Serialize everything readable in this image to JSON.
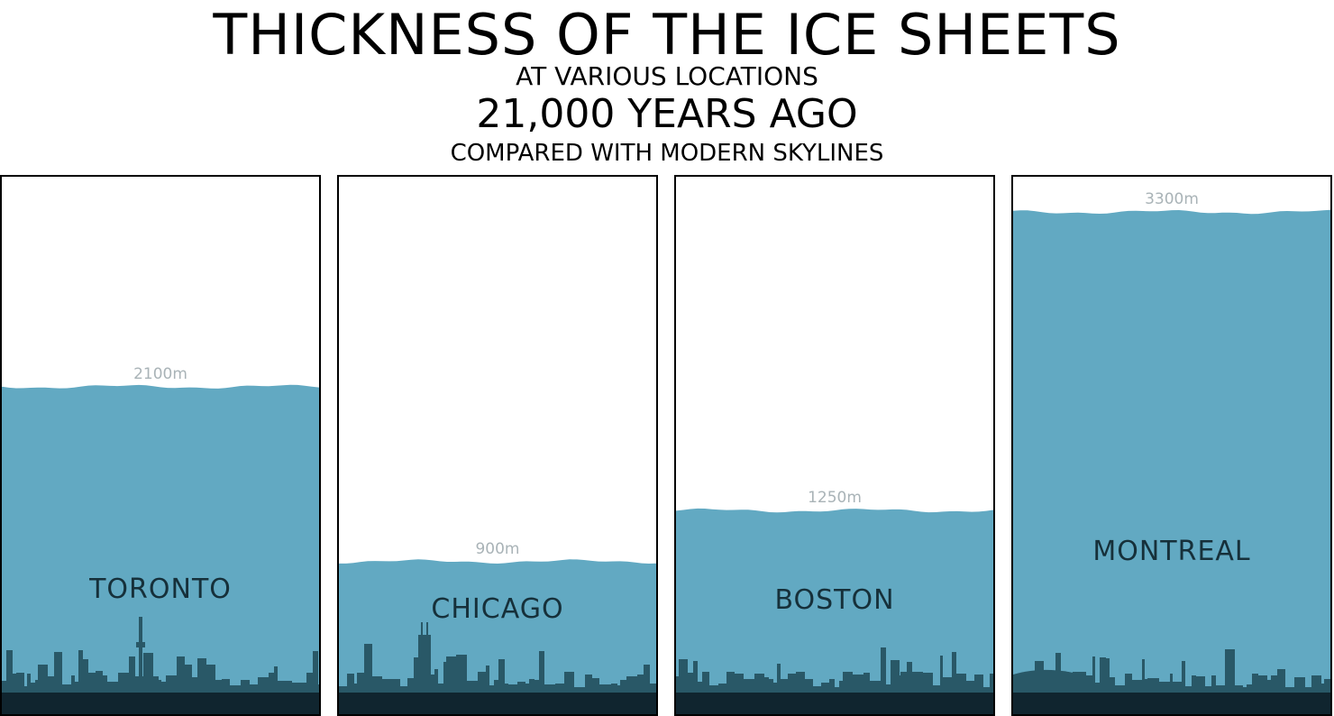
{
  "chart_data": {
    "type": "bar",
    "title": "THICKNESS OF THE ICE SHEETS",
    "subtitle_1": "AT VARIOUS LOCATIONS",
    "subtitle_2": "21,000 YEARS AGO",
    "subtitle_3": "COMPARED WITH MODERN SKYLINES",
    "unit": "m",
    "ylim": [
      0,
      3500
    ],
    "categories": [
      "TORONTO",
      "CHICAGO",
      "BOSTON",
      "MONTREAL"
    ],
    "values": [
      2100,
      900,
      1250,
      3300
    ],
    "value_labels": [
      "2100m",
      "900m",
      "1250m",
      "3300m"
    ],
    "colors": {
      "ice": "#62a9c2",
      "skyline": "#295867",
      "ground": "#10252f"
    },
    "grid": false
  }
}
